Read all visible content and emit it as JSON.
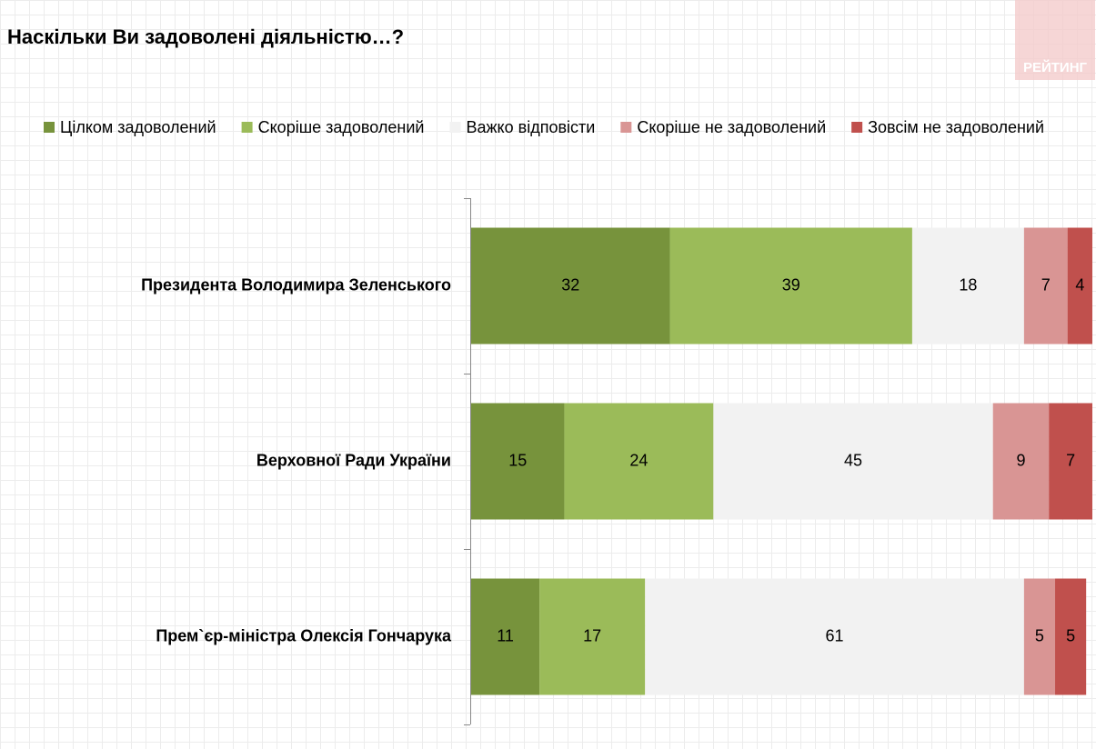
{
  "chart_data": {
    "type": "stacked-bar-horizontal",
    "title": "Наскільки Ви задоволені діяльністю…?",
    "logo": "РЕЙТИНГ",
    "categories": [
      "Президента Володимира Зеленського",
      "Верховної Ради України",
      "Прем`єр-міністра Олексія Гончарука"
    ],
    "series": [
      {
        "name": "Цілком задоволений",
        "color": "#77933c",
        "values": [
          32,
          15,
          11
        ]
      },
      {
        "name": "Скоріше задоволений",
        "color": "#9bbb59",
        "values": [
          39,
          24,
          17
        ]
      },
      {
        "name": "Важко відповісти",
        "color": "#f2f2f2",
        "values": [
          18,
          45,
          61
        ]
      },
      {
        "name": "Скоріше не задоволений",
        "color": "#d99594",
        "values": [
          7,
          9,
          5
        ]
      },
      {
        "name": "Зовсім не задоволений",
        "color": "#c0504d",
        "values": [
          4,
          7,
          5
        ]
      }
    ],
    "xlim": [
      0,
      100
    ],
    "legend": "top"
  }
}
